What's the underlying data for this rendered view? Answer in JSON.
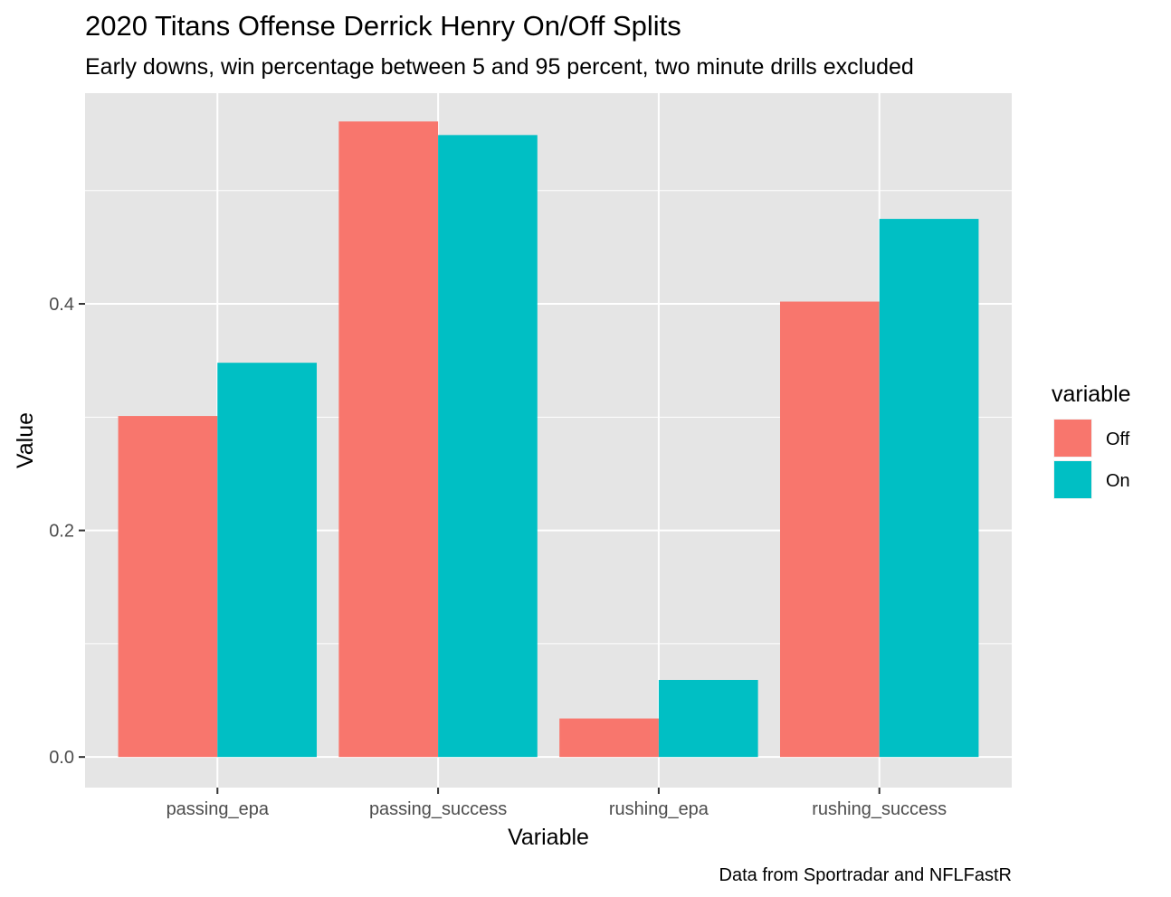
{
  "chart_data": {
    "type": "bar",
    "title": "2020 Titans Offense Derrick Henry On/Off Splits",
    "subtitle": "Early downs, win percentage between 5 and 95 percent, two minute drills excluded",
    "caption": "Data from Sportradar and NFLFastR",
    "xlabel": "Variable",
    "ylabel": "Value",
    "categories": [
      "passing_epa",
      "passing_success",
      "rushing_epa",
      "rushing_success"
    ],
    "series": [
      {
        "name": "Off",
        "color": "#F8766D",
        "values": [
          0.301,
          0.561,
          0.034,
          0.402
        ]
      },
      {
        "name": "On",
        "color": "#00BFC4",
        "values": [
          0.348,
          0.549,
          0.068,
          0.475
        ]
      }
    ],
    "ylim": [
      -0.027,
      0.586
    ],
    "yticks": [
      0.0,
      0.2,
      0.4
    ],
    "ytick_labels": [
      "0.0",
      "0.2",
      "0.4"
    ],
    "legend_title": "variable",
    "legend_position": "right",
    "grid": true,
    "panel_background": "#E5E5E5"
  }
}
